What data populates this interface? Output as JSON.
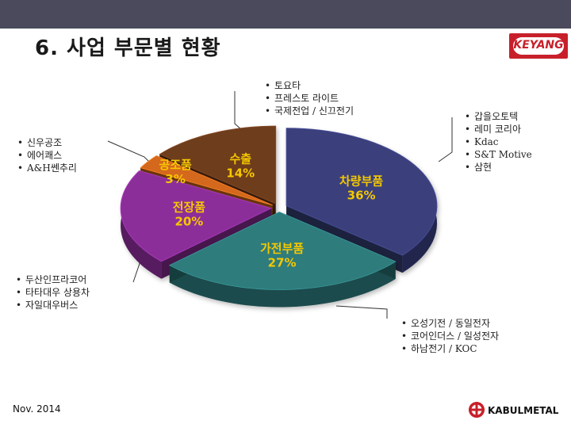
{
  "slide": {
    "title": "6. 사업 부문별 현황",
    "date": "Nov. 2014"
  },
  "logos": {
    "top_right": "KEYANG",
    "bottom_right": "KABULMETAL"
  },
  "colors": {
    "header_bar": "#4a4a5c",
    "brand_red": "#c8202b"
  },
  "clients": {
    "top": [
      "토요타",
      "프레스토 라이트",
      "국제전업 / 신끄전기"
    ],
    "right": [
      "갑을오토텍",
      "레미 코리아",
      "Kdac",
      "S&T Motive",
      "삼현"
    ],
    "left": [
      "신우공조",
      "에어쾌스",
      "A&H쎈추리"
    ],
    "bottom_left": [
      "두산인프라코어",
      "타타대우 상용차",
      "자일대우버스"
    ],
    "bottom_right": [
      "오성기전 / 동일전자",
      "코어인더스 / 일성전자",
      "하남전기 / KOC"
    ]
  },
  "chart_data": {
    "type": "pie",
    "title": "",
    "style": "3d-exploded",
    "start": "top, clockwise",
    "slices": [
      {
        "name": "차량부품",
        "value": 36,
        "label": "36%",
        "color": "#3a3f7c"
      },
      {
        "name": "가전부품",
        "value": 27,
        "label": "27%",
        "color": "#2e7b7c"
      },
      {
        "name": "전장품",
        "value": 20,
        "label": "20%",
        "color": "#8c2f9a"
      },
      {
        "name": "공조품",
        "value": 3,
        "label": "3%",
        "color": "#d4681e"
      },
      {
        "name": "수출",
        "value": 14,
        "label": "14%",
        "color": "#6e3d1e"
      }
    ]
  }
}
